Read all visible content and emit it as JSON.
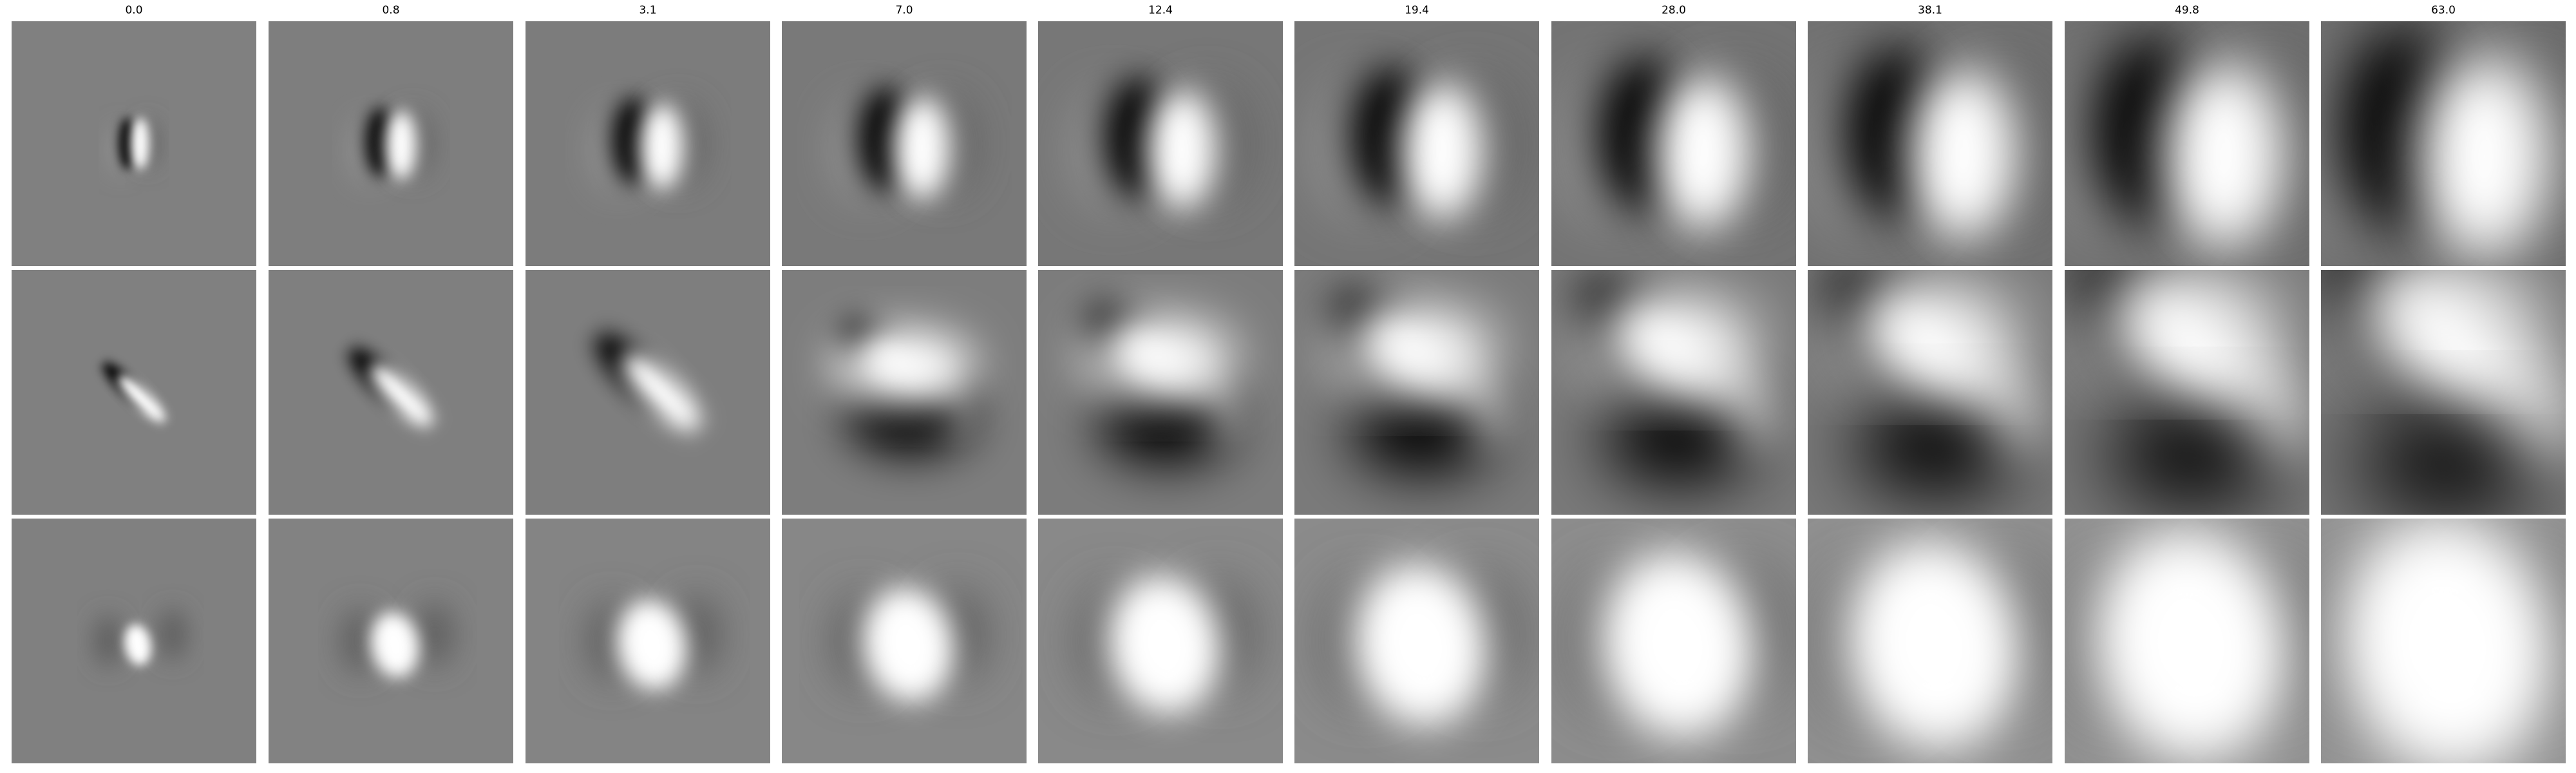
{
  "column_titles": [
    "0.0",
    "0.8",
    "3.1",
    "7.0",
    "12.4",
    "19.4",
    "28.0",
    "38.1",
    "49.8",
    "63.0"
  ],
  "colormap": "grayscale",
  "background_gray": "#808080",
  "row_patterns": [
    "vertical dark-bright dipole that spreads and blurs with increasing scale",
    "diagonal dark-bright dipole that becomes a large blurry textured field",
    "central bright blob that grows into a broad bright region"
  ]
}
